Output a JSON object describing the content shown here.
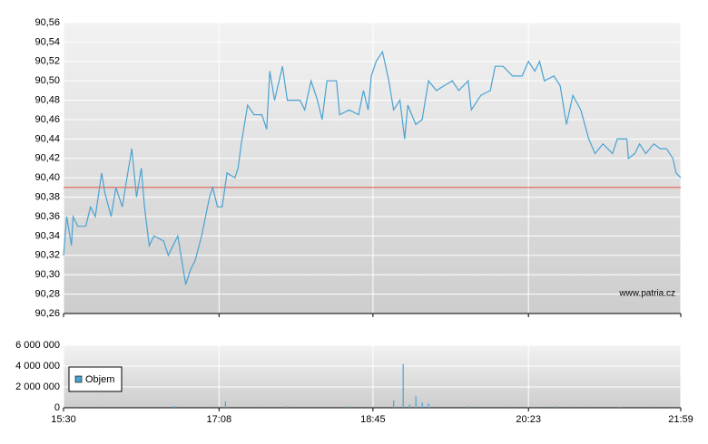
{
  "chart_data": [
    {
      "type": "line",
      "x": [
        "15:30",
        "15:32",
        "15:35",
        "15:36",
        "15:39",
        "15:44",
        "15:47",
        "15:50",
        "15:54",
        "15:56",
        "16:00",
        "16:03",
        "16:07",
        "16:10",
        "16:13",
        "16:16",
        "16:19",
        "16:21",
        "16:24",
        "16:27",
        "16:33",
        "16:36",
        "16:42",
        "16:47",
        "16:50",
        "16:53",
        "16:57",
        "17:02",
        "17:04",
        "17:07",
        "17:10",
        "17:13",
        "17:18",
        "17:20",
        "17:22",
        "17:26",
        "17:30",
        "17:35",
        "17:38",
        "17:40",
        "17:43",
        "17:48",
        "17:51",
        "17:59",
        "18:02",
        "18:06",
        "18:10",
        "18:13",
        "18:16",
        "18:22",
        "18:24",
        "18:30",
        "18:36",
        "18:39",
        "18:42",
        "18:44",
        "18:47",
        "18:51",
        "18:55",
        "18:58",
        "19:02",
        "19:05",
        "19:07",
        "19:12",
        "19:16",
        "19:20",
        "19:25",
        "19:30",
        "19:35",
        "19:39",
        "19:45",
        "19:47",
        "19:53",
        "19:59",
        "20:02",
        "20:07",
        "20:13",
        "20:19",
        "20:23",
        "20:27",
        "20:30",
        "20:33",
        "20:39",
        "20:43",
        "20:47",
        "20:51",
        "20:56",
        "21:01",
        "21:05",
        "21:10",
        "21:16",
        "21:19",
        "21:25",
        "21:26",
        "21:30",
        "21:33",
        "21:37",
        "21:42",
        "21:46",
        "21:50",
        "21:54",
        "21:56",
        "21:59"
      ],
      "series": [
        {
          "color": "#4aa3d1",
          "values": [
            90.32,
            90.36,
            90.33,
            90.36,
            90.35,
            90.35,
            90.37,
            90.36,
            90.405,
            90.385,
            90.36,
            90.39,
            90.37,
            90.4,
            90.43,
            90.38,
            90.41,
            90.37,
            90.33,
            90.34,
            90.335,
            90.32,
            90.34,
            90.29,
            90.305,
            90.315,
            90.34,
            90.38,
            90.39,
            90.37,
            90.37,
            90.405,
            90.4,
            90.41,
            90.435,
            90.475,
            90.465,
            90.465,
            90.45,
            90.51,
            90.48,
            90.515,
            90.48,
            90.48,
            90.47,
            90.5,
            90.48,
            90.46,
            90.5,
            90.5,
            90.465,
            90.47,
            90.465,
            90.49,
            90.47,
            90.505,
            90.52,
            90.53,
            90.5,
            90.47,
            90.48,
            90.44,
            90.475,
            90.455,
            90.46,
            90.5,
            90.49,
            90.495,
            90.5,
            90.49,
            90.5,
            90.47,
            90.485,
            90.49,
            90.515,
            90.515,
            90.505,
            90.505,
            90.52,
            90.51,
            90.52,
            90.5,
            90.505,
            90.495,
            90.455,
            90.485,
            90.47,
            90.44,
            90.425,
            90.435,
            90.425,
            90.44,
            90.44,
            90.42,
            90.425,
            90.435,
            90.425,
            90.435,
            90.43,
            90.43,
            90.42,
            90.405,
            90.4
          ]
        }
      ],
      "xlim": [
        "15:30",
        "21:59"
      ],
      "ylim": [
        90.26,
        90.56
      ],
      "yticks": [
        {
          "value": 90.26,
          "label": "90,26"
        },
        {
          "value": 90.28,
          "label": "90,28"
        },
        {
          "value": 90.3,
          "label": "90,30"
        },
        {
          "value": 90.32,
          "label": "90,32"
        },
        {
          "value": 90.34,
          "label": "90,34"
        },
        {
          "value": 90.36,
          "label": "90,36"
        },
        {
          "value": 90.38,
          "label": "90,38"
        },
        {
          "value": 90.4,
          "label": "90,40"
        },
        {
          "value": 90.42,
          "label": "90,42"
        },
        {
          "value": 90.44,
          "label": "90,44"
        },
        {
          "value": 90.46,
          "label": "90,46"
        },
        {
          "value": 90.48,
          "label": "90,48"
        },
        {
          "value": 90.5,
          "label": "90,50"
        },
        {
          "value": 90.52,
          "label": "90,52"
        },
        {
          "value": 90.54,
          "label": "90,54"
        },
        {
          "value": 90.56,
          "label": "90,56"
        }
      ],
      "hline": 90.39,
      "hline_color": "#e0503c",
      "grid": true,
      "watermark": "www.patria.cz"
    },
    {
      "type": "bar",
      "x": [
        "16:40",
        "17:12",
        "17:50",
        "18:30",
        "18:58",
        "19:04",
        "19:08",
        "19:12",
        "19:16",
        "19:20",
        "19:45",
        "20:40",
        "21:20"
      ],
      "series": [
        {
          "name": "Objem",
          "color": "#4aa3d1",
          "values": [
            150000,
            600000,
            150000,
            150000,
            700000,
            4200000,
            300000,
            1100000,
            500000,
            400000,
            150000,
            150000,
            100000
          ]
        }
      ],
      "xlim": [
        "15:30",
        "21:59"
      ],
      "xticks": [
        "15:30",
        "17:08",
        "18:45",
        "20:23",
        "21:59"
      ],
      "ylim": [
        0,
        6000000
      ],
      "yticks": [
        0,
        {
          "value": 2000000,
          "label": "2 000 000"
        },
        {
          "value": 4000000,
          "label": "4 000 000"
        },
        {
          "value": 6000000,
          "label": "6 000 000"
        }
      ],
      "grid": true,
      "legend": "lower left"
    }
  ]
}
